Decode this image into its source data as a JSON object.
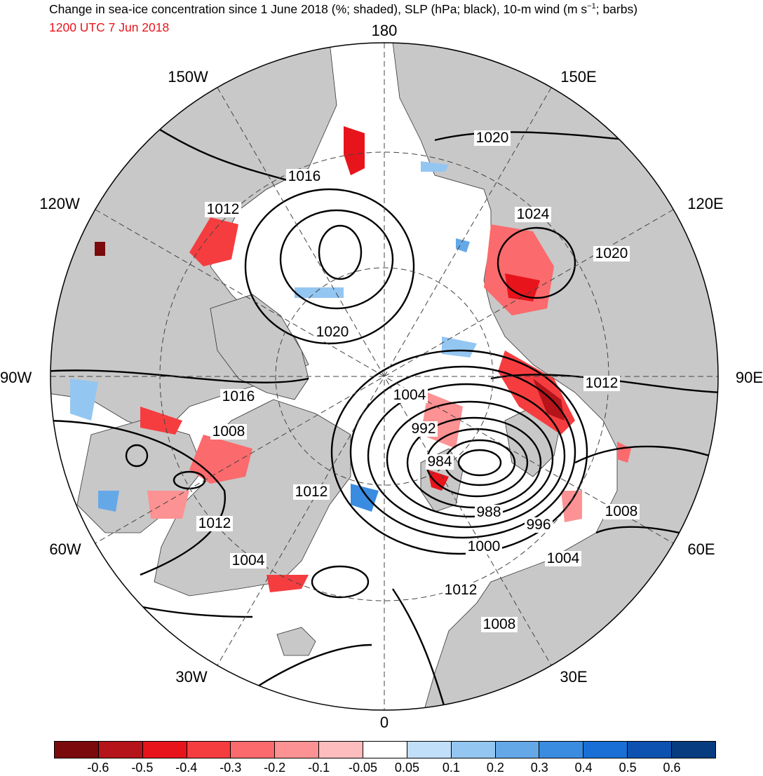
{
  "title": "Change in sea-ice concentration since 1 June 2018 (%; shaded), SLP (hPa; black), 10-m wind (m s",
  "title_sup": "−1",
  "title_end": "; barbs)",
  "valid_time": "1200 UTC 7 Jun 2018",
  "longitude_labels": {
    "n180": "180",
    "e150": "150E",
    "e120": "120E",
    "e90": "90E",
    "e60": "60E",
    "e30": "30E",
    "s0": "0",
    "w30": "30W",
    "w60": "60W",
    "w90": "90W",
    "w120": "120W",
    "w150": "150W"
  },
  "slp_contour_labels": [
    "1020",
    "1016",
    "1012",
    "1020",
    "1024",
    "1020",
    "1012",
    "1004",
    "992",
    "984",
    "988",
    "996",
    "1000",
    "1004",
    "1008",
    "1012",
    "1008",
    "1012",
    "1004",
    "1016",
    "1008",
    "1012"
  ],
  "colorbar": {
    "colors": [
      "#7a0a0c",
      "#b4141a",
      "#e8141c",
      "#f53d40",
      "#fb6a6c",
      "#fc9293",
      "#fdbdbe",
      "#ffffff",
      "#c2dffa",
      "#94c6f2",
      "#65a8e8",
      "#3a8ce0",
      "#1a6fd6",
      "#0d52b0",
      "#073d80"
    ],
    "labels": [
      "-0.6",
      "-0.5",
      "-0.4",
      "-0.3",
      "-0.2",
      "-0.1",
      "-0.05",
      "0.05",
      "0.1",
      "0.2",
      "0.3",
      "0.4",
      "0.5",
      "0.6"
    ]
  },
  "colors": {
    "land": "#c8c8c8",
    "ocean_ice": "#ffffff",
    "contour": "#000000",
    "valid_time": "#e8141c"
  }
}
